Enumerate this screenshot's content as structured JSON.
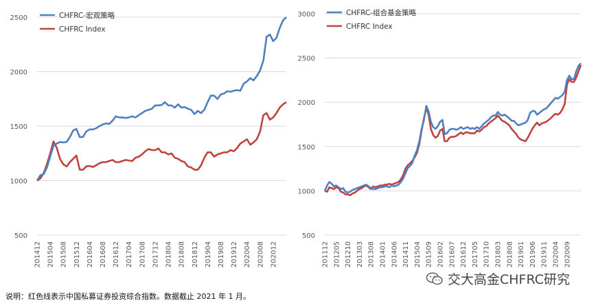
{
  "footnote": "说明：红色线表示中国私募证券投资综合指数。数据截止 2021 年 1 月。",
  "watermark": "交大高金CHFRC研究",
  "colors": {
    "strategy": "#4E7FC0",
    "index": "#C0423F",
    "grid": "#D9D9D9"
  },
  "chart_data": [
    {
      "type": "line",
      "title": "",
      "xlabel": "",
      "ylabel": "",
      "ylim": [
        500,
        2500
      ],
      "yticks": [
        500,
        1000,
        1500,
        2000,
        2500
      ],
      "legend_position": "top-left",
      "grid": true,
      "x_tick_labels": [
        "201412",
        "201504",
        "201508",
        "201512",
        "201604",
        "201608",
        "201612",
        "201704",
        "201708",
        "201712",
        "201804",
        "201808",
        "201812",
        "201904",
        "201908",
        "201912",
        "202004",
        "202008",
        "202012"
      ],
      "x_tick_every": 4,
      "series": [
        {
          "name": "CHFRC-宏观策略",
          "color": "#4E7FC0",
          "values": [
            1000,
            1050,
            1060,
            1120,
            1220,
            1320,
            1340,
            1355,
            1350,
            1355,
            1400,
            1460,
            1475,
            1400,
            1400,
            1450,
            1470,
            1470,
            1480,
            1500,
            1515,
            1525,
            1520,
            1550,
            1590,
            1580,
            1580,
            1575,
            1580,
            1590,
            1580,
            1600,
            1620,
            1640,
            1650,
            1660,
            1690,
            1690,
            1695,
            1720,
            1690,
            1690,
            1670,
            1700,
            1670,
            1675,
            1660,
            1650,
            1610,
            1640,
            1620,
            1650,
            1720,
            1780,
            1780,
            1750,
            1790,
            1800,
            1820,
            1815,
            1825,
            1830,
            1825,
            1890,
            1910,
            1940,
            1920,
            1960,
            2010,
            2100,
            2320,
            2340,
            2280,
            2310,
            2400,
            2470,
            2500
          ]
        },
        {
          "name": "CHFRC Index",
          "color": "#C0423F",
          "values": [
            1000,
            1020,
            1070,
            1150,
            1250,
            1360,
            1300,
            1200,
            1150,
            1130,
            1170,
            1200,
            1230,
            1100,
            1100,
            1130,
            1135,
            1125,
            1140,
            1160,
            1170,
            1170,
            1180,
            1190,
            1170,
            1170,
            1180,
            1190,
            1185,
            1180,
            1210,
            1220,
            1240,
            1270,
            1290,
            1280,
            1280,
            1295,
            1260,
            1260,
            1240,
            1250,
            1210,
            1200,
            1180,
            1170,
            1130,
            1120,
            1100,
            1100,
            1140,
            1210,
            1260,
            1260,
            1220,
            1240,
            1250,
            1260,
            1260,
            1280,
            1270,
            1300,
            1340,
            1360,
            1380,
            1330,
            1350,
            1380,
            1450,
            1600,
            1620,
            1560,
            1580,
            1620,
            1670,
            1700,
            1720
          ]
        }
      ]
    },
    {
      "type": "line",
      "title": "",
      "xlabel": "",
      "ylabel": "",
      "ylim": [
        500,
        3000
      ],
      "yticks": [
        500,
        1000,
        1500,
        2000,
        2500,
        3000
      ],
      "legend_position": "top-left",
      "grid": true,
      "x_tick_labels": [
        "201112",
        "201205",
        "201210",
        "201303",
        "201308",
        "201401",
        "201406",
        "201411",
        "201504",
        "201509",
        "201602",
        "201607",
        "201612",
        "201705",
        "201710",
        "201803",
        "201808",
        "201901",
        "201906",
        "201911",
        "202004",
        "202009"
      ],
      "x_tick_every": 5,
      "series": [
        {
          "name": "CHFRC-组合基金策略",
          "color": "#4E7FC0",
          "values": [
            1000,
            1060,
            1100,
            1080,
            1050,
            1060,
            1040,
            1020,
            1030,
            990,
            980,
            990,
            1010,
            1020,
            1030,
            1040,
            1050,
            1060,
            1070,
            1050,
            1030,
            1020,
            1020,
            1030,
            1040,
            1040,
            1050,
            1050,
            1040,
            1060,
            1050,
            1060,
            1070,
            1100,
            1140,
            1200,
            1260,
            1280,
            1320,
            1400,
            1460,
            1560,
            1700,
            1800,
            1960,
            1900,
            1780,
            1720,
            1700,
            1730,
            1780,
            1800,
            1640,
            1650,
            1690,
            1700,
            1700,
            1690,
            1700,
            1720,
            1700,
            1710,
            1720,
            1700,
            1710,
            1700,
            1720,
            1700,
            1730,
            1760,
            1780,
            1800,
            1830,
            1850,
            1850,
            1890,
            1860,
            1850,
            1860,
            1840,
            1820,
            1790,
            1790,
            1760,
            1740,
            1750,
            1760,
            1770,
            1800,
            1880,
            1900,
            1900,
            1860,
            1880,
            1900,
            1920,
            1930,
            1960,
            1990,
            2020,
            2050,
            2040,
            2060,
            2080,
            2120,
            2250,
            2300,
            2260,
            2260,
            2350,
            2410,
            2440
          ]
        },
        {
          "name": "CHFRC Index",
          "color": "#C0423F",
          "values": [
            1000,
            990,
            1040,
            1030,
            1020,
            1040,
            1030,
            990,
            980,
            960,
            960,
            950,
            970,
            980,
            1000,
            1020,
            1030,
            1050,
            1060,
            1040,
            1020,
            1050,
            1040,
            1050,
            1060,
            1060,
            1070,
            1070,
            1080,
            1070,
            1080,
            1090,
            1100,
            1130,
            1180,
            1250,
            1290,
            1310,
            1340,
            1380,
            1430,
            1530,
            1680,
            1820,
            1940,
            1860,
            1700,
            1630,
            1600,
            1620,
            1680,
            1700,
            1560,
            1560,
            1600,
            1610,
            1610,
            1620,
            1640,
            1660,
            1640,
            1660,
            1660,
            1650,
            1650,
            1650,
            1680,
            1670,
            1690,
            1720,
            1730,
            1760,
            1780,
            1800,
            1820,
            1850,
            1820,
            1790,
            1780,
            1760,
            1740,
            1700,
            1670,
            1640,
            1600,
            1580,
            1570,
            1560,
            1600,
            1650,
            1700,
            1740,
            1770,
            1740,
            1760,
            1770,
            1780,
            1800,
            1820,
            1850,
            1870,
            1860,
            1880,
            1920,
            1980,
            2200,
            2260,
            2230,
            2230,
            2280,
            2350,
            2420
          ]
        }
      ]
    }
  ]
}
